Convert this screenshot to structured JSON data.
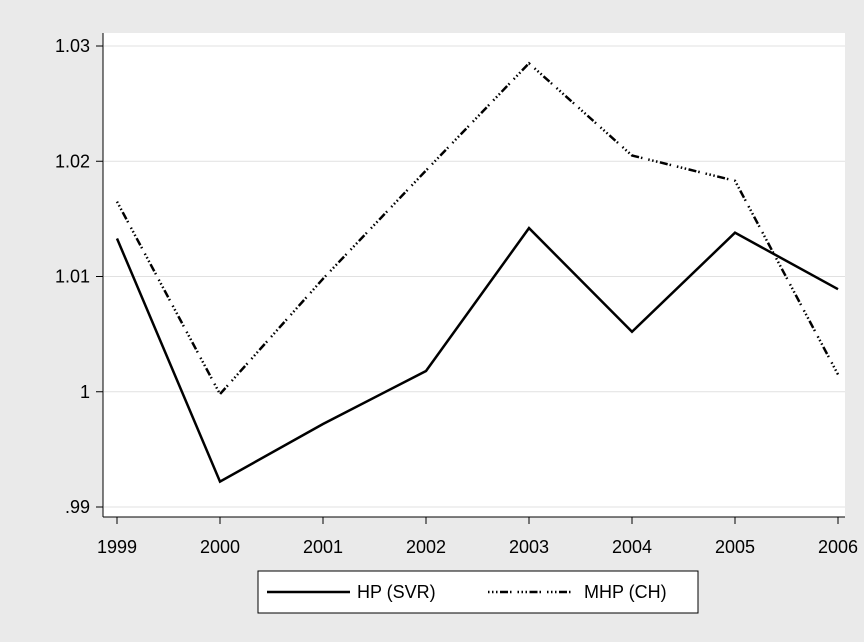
{
  "chart_data": {
    "type": "line",
    "x": [
      1999,
      2000,
      2001,
      2002,
      2003,
      2004,
      2005,
      2006
    ],
    "ylim": [
      0.99,
      1.03
    ],
    "y_ticks": [
      0.99,
      1.0,
      1.01,
      1.02,
      1.03
    ],
    "y_tick_labels": [
      ".99",
      "1",
      "1.01",
      "1.02",
      "1.03"
    ],
    "x_tick_labels": [
      "1999",
      "2000",
      "2001",
      "2002",
      "2003",
      "2004",
      "2005",
      "2006"
    ],
    "grid": true,
    "legend_position": "bottom",
    "series": [
      {
        "name": "HP (SVR)",
        "style": "solid",
        "color": "#000000",
        "values": [
          1.0133,
          0.9922,
          0.9972,
          1.0018,
          1.0142,
          1.0052,
          1.0138,
          1.0089
        ]
      },
      {
        "name": "MHP (CH)",
        "style": "dotted",
        "color": "#000000",
        "values": [
          1.0165,
          0.9998,
          1.0098,
          1.0192,
          1.0285,
          1.0205,
          1.0183,
          1.0015
        ]
      }
    ]
  },
  "colors": {
    "page_background": "#eaeaea",
    "plot_background": "#ffffff",
    "grid": "#e1e1e1"
  }
}
